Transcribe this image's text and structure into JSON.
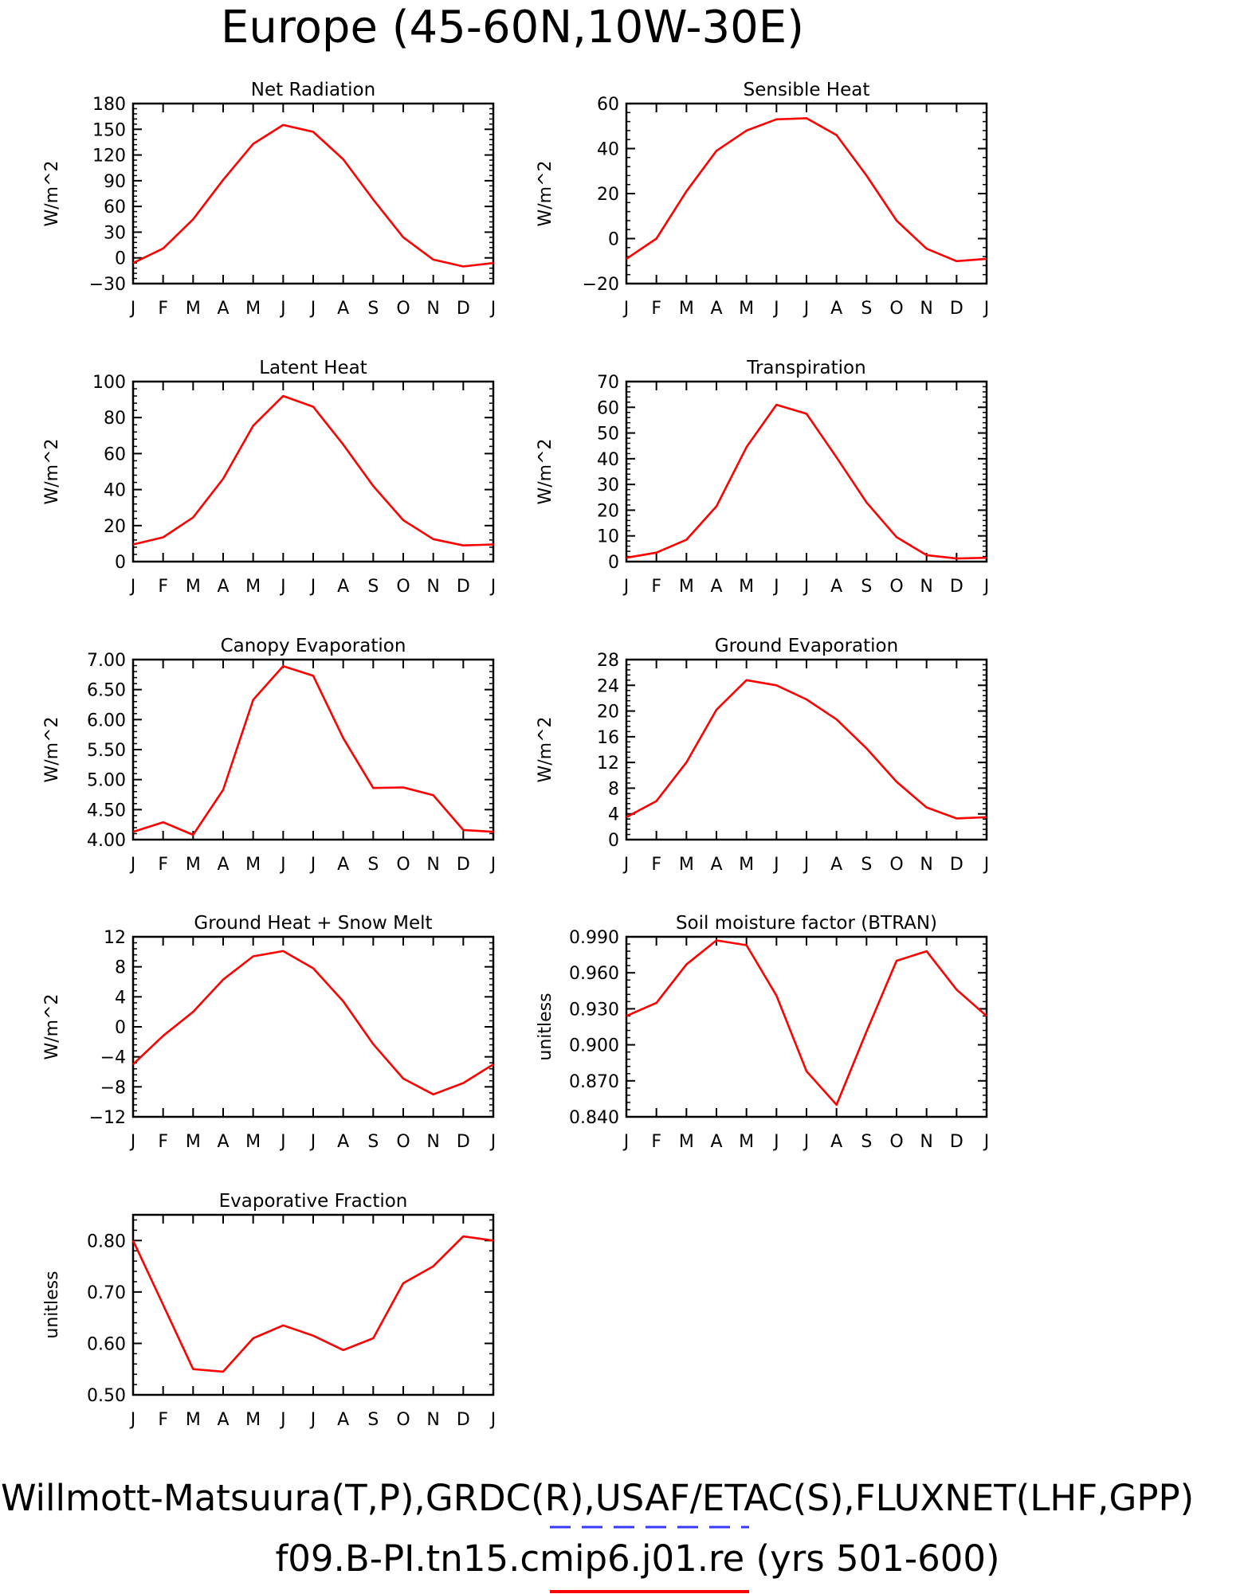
{
  "figure": {
    "title": "Europe (45-60N,10W-30E)",
    "footer_line1": "Willmott-Matsuura(T,P),GRDC(R),USAF/ETAC(S),FLUXNET(LHF,GPP)",
    "footer_line2": "f09.B-PI.tn15.cmip6.j01.re (yrs 501-600)",
    "legend_colors": {
      "obs": "#3a3aff",
      "model": "#ff0000"
    },
    "line_color": "#ff0000"
  },
  "chart_data": [
    {
      "type": "line",
      "title": "Net Radiation",
      "ylabel": "W/m^2",
      "ylim": [
        -30,
        180
      ],
      "yticks": [
        "-30",
        "0",
        "30",
        "60",
        "90",
        "120",
        "150",
        "180"
      ],
      "categories": [
        "J",
        "F",
        "M",
        "A",
        "M",
        "J",
        "J",
        "A",
        "S",
        "O",
        "N",
        "D",
        "J"
      ],
      "values": [
        -6,
        11,
        45,
        91,
        133,
        155,
        147,
        115,
        68,
        24,
        -2,
        -10,
        -6
      ]
    },
    {
      "type": "line",
      "title": "Sensible Heat",
      "ylabel": "W/m^2",
      "ylim": [
        -20,
        60
      ],
      "yticks": [
        "-20",
        "0",
        "20",
        "40",
        "60"
      ],
      "categories": [
        "J",
        "F",
        "M",
        "A",
        "M",
        "J",
        "J",
        "A",
        "S",
        "O",
        "N",
        "D",
        "J"
      ],
      "values": [
        -9,
        0,
        21,
        39,
        48,
        53,
        53.5,
        46,
        28,
        8,
        -4.5,
        -10,
        -9
      ]
    },
    {
      "type": "line",
      "title": "Latent Heat",
      "ylabel": "W/m^2",
      "ylim": [
        0,
        100
      ],
      "yticks": [
        "0",
        "20",
        "40",
        "60",
        "80",
        "100"
      ],
      "categories": [
        "J",
        "F",
        "M",
        "A",
        "M",
        "J",
        "J",
        "A",
        "S",
        "O",
        "N",
        "D",
        "J"
      ],
      "values": [
        9.5,
        13.5,
        24.5,
        46,
        75.5,
        92,
        86,
        65,
        42,
        23,
        12.5,
        9,
        9.5
      ]
    },
    {
      "type": "line",
      "title": "Transpiration",
      "ylabel": "W/m^2",
      "ylim": [
        0,
        70
      ],
      "yticks": [
        "0",
        "10",
        "20",
        "30",
        "40",
        "50",
        "60",
        "70"
      ],
      "categories": [
        "J",
        "F",
        "M",
        "A",
        "M",
        "J",
        "J",
        "A",
        "S",
        "O",
        "N",
        "D",
        "J"
      ],
      "values": [
        1.5,
        3.5,
        8.5,
        21.5,
        44.5,
        61,
        57.5,
        40.5,
        23,
        9.5,
        2.5,
        1.2,
        1.5
      ]
    },
    {
      "type": "line",
      "title": "Canopy Evaporation",
      "ylabel": "W/m^2",
      "ylim": [
        4.0,
        7.0
      ],
      "yticks": [
        "4.00",
        "4.50",
        "5.00",
        "5.50",
        "6.00",
        "6.50",
        "7.00"
      ],
      "categories": [
        "J",
        "F",
        "M",
        "A",
        "M",
        "J",
        "J",
        "A",
        "S",
        "O",
        "N",
        "D",
        "J"
      ],
      "values": [
        4.13,
        4.29,
        4.08,
        4.83,
        6.33,
        6.89,
        6.73,
        5.69,
        4.86,
        4.87,
        4.74,
        4.16,
        4.13
      ]
    },
    {
      "type": "line",
      "title": "Ground Evaporation",
      "ylabel": "W/m^2",
      "ylim": [
        0,
        28
      ],
      "yticks": [
        "0",
        "4",
        "8",
        "12",
        "16",
        "20",
        "24",
        "28"
      ],
      "categories": [
        "J",
        "F",
        "M",
        "A",
        "M",
        "J",
        "J",
        "A",
        "S",
        "O",
        "N",
        "D",
        "J"
      ],
      "values": [
        3.5,
        6,
        12,
        20.2,
        24.8,
        24,
        21.8,
        18.7,
        14.2,
        9,
        5,
        3.3,
        3.5
      ]
    },
    {
      "type": "line",
      "title": "Ground Heat + Snow Melt",
      "ylabel": "W/m^2",
      "ylim": [
        -12,
        12
      ],
      "yticks": [
        "-12",
        "-8",
        "-4",
        "0",
        "4",
        "8",
        "12"
      ],
      "categories": [
        "J",
        "F",
        "M",
        "A",
        "M",
        "J",
        "J",
        "A",
        "S",
        "O",
        "N",
        "D",
        "J"
      ],
      "values": [
        -5,
        -1.2,
        2,
        6.3,
        9.4,
        10.1,
        7.8,
        3.4,
        -2.3,
        -6.9,
        -9,
        -7.5,
        -5
      ]
    },
    {
      "type": "line",
      "title": "Soil moisture factor (BTRAN)",
      "ylabel": "unitless",
      "ylim": [
        0.84,
        0.99
      ],
      "yticks": [
        "0.840",
        "0.870",
        "0.900",
        "0.930",
        "0.960",
        "0.990"
      ],
      "categories": [
        "J",
        "F",
        "M",
        "A",
        "M",
        "J",
        "J",
        "A",
        "S",
        "O",
        "N",
        "D",
        "J"
      ],
      "values": [
        0.924,
        0.935,
        0.967,
        0.987,
        0.983,
        0.941,
        0.878,
        0.85,
        0.911,
        0.97,
        0.978,
        0.946,
        0.924
      ]
    },
    {
      "type": "line",
      "title": "Evaporative Fraction",
      "ylabel": "unitless",
      "ylim": [
        0.5,
        0.85
      ],
      "yticks": [
        "0.50",
        "0.60",
        "0.70",
        "0.80"
      ],
      "categories": [
        "J",
        "F",
        "M",
        "A",
        "M",
        "J",
        "J",
        "A",
        "S",
        "O",
        "N",
        "D",
        "J"
      ],
      "values": [
        0.8,
        0.675,
        0.55,
        0.545,
        0.61,
        0.635,
        0.615,
        0.587,
        0.61,
        0.717,
        0.75,
        0.808,
        0.8
      ]
    }
  ]
}
